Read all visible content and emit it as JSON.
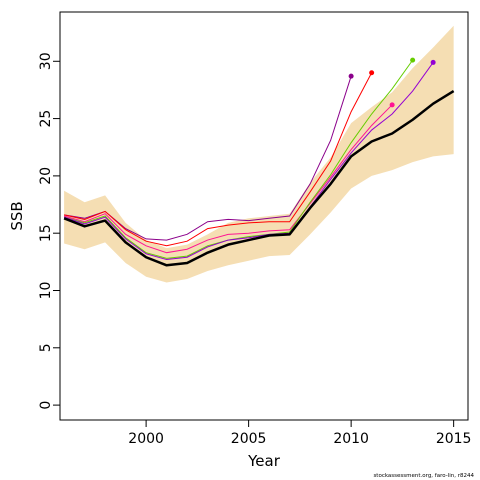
{
  "footer": "stockassessment.org, faro-lin, r8244",
  "chart_data": {
    "type": "line",
    "title": "",
    "xlabel": "Year",
    "ylabel": "SSB",
    "xlim": [
      1995.8,
      2015.7
    ],
    "ylim": [
      -1.3,
      34.3
    ],
    "xticks": [
      2000,
      2005,
      2010,
      2015
    ],
    "yticks": [
      0,
      5,
      10,
      15,
      20,
      25,
      30
    ],
    "grid": false,
    "legend": "none",
    "colors": {
      "band": "#f5deb3",
      "main": "#000000",
      "retro": [
        "#8b008b",
        "#ff0000",
        "#ff1493",
        "#66cd00",
        "#9400d3"
      ]
    },
    "band": {
      "x": [
        1996,
        1997,
        1998,
        1999,
        2000,
        2001,
        2002,
        2003,
        2004,
        2005,
        2006,
        2007,
        2008,
        2009,
        2010,
        2011,
        2012,
        2013,
        2014,
        2015
      ],
      "lower": [
        14.1,
        13.6,
        14.2,
        12.4,
        11.2,
        10.7,
        11.0,
        11.7,
        12.2,
        12.6,
        13.0,
        13.1,
        14.9,
        16.8,
        18.9,
        20.0,
        20.5,
        21.2,
        21.7,
        21.9
      ],
      "upper": [
        18.7,
        17.7,
        18.3,
        15.9,
        14.4,
        13.7,
        14.0,
        14.9,
        15.9,
        16.3,
        16.5,
        16.7,
        19.4,
        21.6,
        24.6,
        26.0,
        27.3,
        29.4,
        31.2,
        33.1
      ]
    },
    "series": [
      {
        "values_x": [
          1996,
          1997,
          1998,
          1999,
          2000,
          2001,
          2002,
          2003,
          2004,
          2005,
          2006,
          2007,
          2008,
          2009,
          2010,
          2011,
          2012,
          2013,
          2014,
          2015
        ],
        "values": [
          16.3,
          15.6,
          16.1,
          14.2,
          12.9,
          12.2,
          12.4,
          13.3,
          14.0,
          14.4,
          14.8,
          14.9,
          17.2,
          19.3,
          21.7,
          23.0,
          23.7,
          24.9,
          26.3,
          27.4
        ]
      },
      {
        "values_x": [
          1996,
          1997,
          1998,
          1999,
          2000,
          2001,
          2002,
          2003,
          2004,
          2005,
          2006,
          2007,
          2008,
          2009,
          2010
        ],
        "values": [
          16.6,
          16.3,
          16.9,
          15.4,
          14.5,
          14.4,
          14.9,
          16.0,
          16.2,
          16.1,
          16.3,
          16.5,
          19.3,
          23.1,
          28.7
        ]
      },
      {
        "values_x": [
          1996,
          1997,
          1998,
          1999,
          2000,
          2001,
          2002,
          2003,
          2004,
          2005,
          2006,
          2007,
          2008,
          2009,
          2010,
          2011
        ],
        "values": [
          16.6,
          16.2,
          16.9,
          15.3,
          14.3,
          13.9,
          14.3,
          15.4,
          15.7,
          15.9,
          16.0,
          16.0,
          18.6,
          21.3,
          25.6,
          29.0
        ]
      },
      {
        "values_x": [
          1996,
          1997,
          1998,
          1999,
          2000,
          2001,
          2002,
          2003,
          2004,
          2005,
          2006,
          2007,
          2008,
          2009,
          2010,
          2011,
          2012
        ],
        "values": [
          16.5,
          16.0,
          16.7,
          14.9,
          13.9,
          13.3,
          13.6,
          14.4,
          14.9,
          15.0,
          15.2,
          15.3,
          17.6,
          19.9,
          22.3,
          24.4,
          26.2
        ]
      },
      {
        "values_x": [
          1996,
          1997,
          1998,
          1999,
          2000,
          2001,
          2002,
          2003,
          2004,
          2005,
          2006,
          2007,
          2008,
          2009,
          2010,
          2011,
          2012,
          2013
        ],
        "values": [
          16.4,
          15.9,
          16.5,
          14.6,
          13.3,
          12.8,
          13.0,
          13.9,
          14.4,
          14.7,
          14.9,
          15.1,
          17.7,
          20.1,
          22.9,
          25.4,
          27.6,
          30.1
        ]
      },
      {
        "values_x": [
          1996,
          1997,
          1998,
          1999,
          2000,
          2001,
          2002,
          2003,
          2004,
          2005,
          2006,
          2007,
          2008,
          2009,
          2010,
          2011,
          2012,
          2013,
          2014
        ],
        "values": [
          16.4,
          15.8,
          16.4,
          14.5,
          13.2,
          12.7,
          12.9,
          13.8,
          14.4,
          14.6,
          14.9,
          15.0,
          17.3,
          19.7,
          22.0,
          24.0,
          25.4,
          27.4,
          29.9
        ]
      }
    ]
  }
}
